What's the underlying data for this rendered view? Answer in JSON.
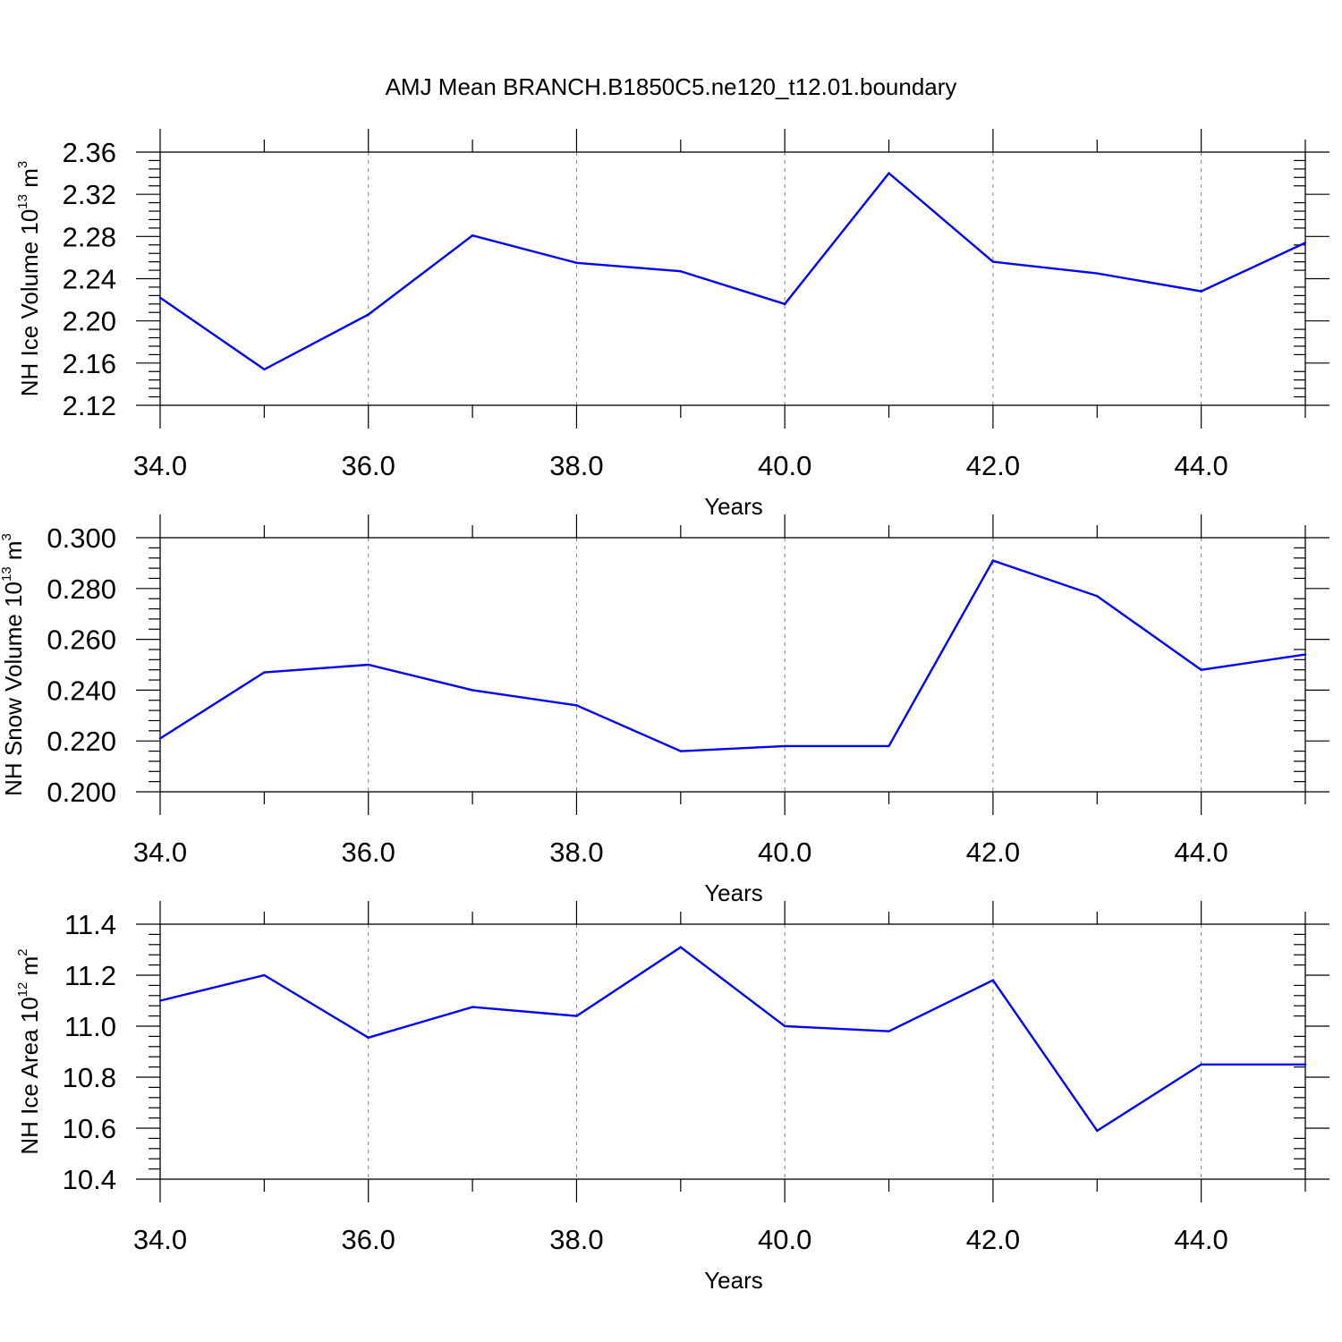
{
  "title": "AMJ Mean BRANCH.B1850C5.ne120_t12.01.boundary",
  "colors": {
    "line": "#0000ff",
    "axis": "#000000",
    "grid": "#808080"
  },
  "chart_data": [
    {
      "type": "line",
      "title": "AMJ Mean BRANCH.B1850C5.ne120_t12.01.boundary",
      "xlabel": "Years",
      "ylabel": {
        "text": "NH Ice Volume 10",
        "sup": "13",
        "unit": " m",
        "unit_sup": "3"
      },
      "xlim": [
        34,
        45
      ],
      "ylim": [
        2.12,
        2.36
      ],
      "x_ticks": [
        34,
        36,
        38,
        40,
        42,
        44
      ],
      "x_tick_labels": [
        "34.0",
        "36.0",
        "38.0",
        "40.0",
        "42.0",
        "44.0"
      ],
      "y_ticks": [
        2.12,
        2.16,
        2.2,
        2.24,
        2.28,
        2.32,
        2.36
      ],
      "y_tick_labels": [
        "2.12",
        "2.16",
        "2.20",
        "2.24",
        "2.28",
        "2.32",
        "2.36"
      ],
      "grid": "vertical dashed at major x ticks",
      "x": [
        34,
        35,
        36,
        37,
        38,
        39,
        40,
        41,
        42,
        43,
        44,
        45
      ],
      "values": [
        2.222,
        2.154,
        2.206,
        2.281,
        2.255,
        2.247,
        2.216,
        2.34,
        2.256,
        2.245,
        2.228,
        2.274
      ]
    },
    {
      "type": "line",
      "xlabel": "Years",
      "ylabel": {
        "text": "NH Snow Volume 10",
        "sup": "13",
        "unit": " m",
        "unit_sup": "3"
      },
      "xlim": [
        34,
        45
      ],
      "ylim": [
        0.2,
        0.3
      ],
      "x_ticks": [
        34,
        36,
        38,
        40,
        42,
        44
      ],
      "x_tick_labels": [
        "34.0",
        "36.0",
        "38.0",
        "40.0",
        "42.0",
        "44.0"
      ],
      "y_ticks": [
        0.2,
        0.22,
        0.24,
        0.26,
        0.28,
        0.3
      ],
      "y_tick_labels": [
        "0.200",
        "0.220",
        "0.240",
        "0.260",
        "0.280",
        "0.300"
      ],
      "grid": "vertical dashed at major x ticks",
      "x": [
        34,
        35,
        36,
        37,
        38,
        39,
        40,
        41,
        42,
        43,
        44,
        45
      ],
      "values": [
        0.221,
        0.247,
        0.25,
        0.24,
        0.234,
        0.216,
        0.218,
        0.218,
        0.291,
        0.277,
        0.248,
        0.254
      ]
    },
    {
      "type": "line",
      "xlabel": "Years",
      "ylabel": {
        "text": "NH Ice Area 10",
        "sup": "12",
        "unit": " m",
        "unit_sup": "2"
      },
      "xlim": [
        34,
        45
      ],
      "ylim": [
        10.4,
        11.4
      ],
      "x_ticks": [
        34,
        36,
        38,
        40,
        42,
        44
      ],
      "x_tick_labels": [
        "34.0",
        "36.0",
        "38.0",
        "40.0",
        "42.0",
        "44.0"
      ],
      "y_ticks": [
        10.4,
        10.6,
        10.8,
        11.0,
        11.2,
        11.4
      ],
      "y_tick_labels": [
        "10.4",
        "10.6",
        "10.8",
        "11.0",
        "11.2",
        "11.4"
      ],
      "grid": "vertical dashed at major x ticks",
      "x": [
        34,
        35,
        36,
        37,
        38,
        39,
        40,
        41,
        42,
        43,
        44,
        45
      ],
      "values": [
        11.1,
        11.2,
        10.955,
        11.075,
        11.04,
        11.31,
        11.0,
        10.98,
        11.18,
        10.59,
        10.85,
        10.85
      ]
    }
  ]
}
